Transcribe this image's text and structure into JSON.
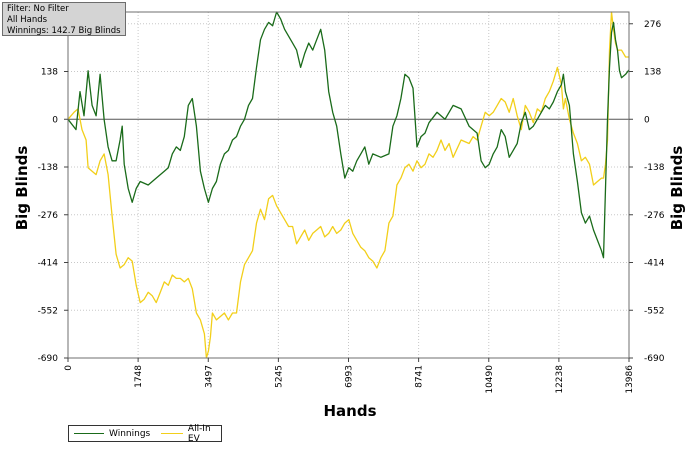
{
  "info": {
    "line1": "Filter: No Filter",
    "line2": "All Hands",
    "line3": "Winnings: 142.7 Big Blinds"
  },
  "chart_data": {
    "type": "line",
    "xlabel": "Hands",
    "ylabel": "Big Blinds",
    "xlim": [
      0,
      13986
    ],
    "ylim": [
      -690,
      310
    ],
    "x_ticks": [
      0,
      1748,
      3497,
      5245,
      6993,
      8741,
      10490,
      12238,
      13986
    ],
    "y_ticks": [
      276,
      138,
      0,
      -138,
      -276,
      -414,
      -552,
      -690
    ],
    "grid": true,
    "legend_position": "bottom-left",
    "series": [
      {
        "name": "Winnings",
        "color": "#1a6b1a",
        "points": [
          [
            0,
            0
          ],
          [
            200,
            -30
          ],
          [
            300,
            80
          ],
          [
            400,
            10
          ],
          [
            500,
            140
          ],
          [
            600,
            40
          ],
          [
            700,
            10
          ],
          [
            800,
            130
          ],
          [
            900,
            0
          ],
          [
            1000,
            -80
          ],
          [
            1100,
            -120
          ],
          [
            1200,
            -120
          ],
          [
            1300,
            -60
          ],
          [
            1350,
            -20
          ],
          [
            1400,
            -130
          ],
          [
            1500,
            -200
          ],
          [
            1600,
            -240
          ],
          [
            1700,
            -200
          ],
          [
            1800,
            -180
          ],
          [
            2000,
            -190
          ],
          [
            2200,
            -170
          ],
          [
            2400,
            -150
          ],
          [
            2500,
            -140
          ],
          [
            2600,
            -100
          ],
          [
            2700,
            -80
          ],
          [
            2800,
            -90
          ],
          [
            2900,
            -50
          ],
          [
            3000,
            40
          ],
          [
            3100,
            60
          ],
          [
            3200,
            -20
          ],
          [
            3300,
            -150
          ],
          [
            3400,
            -200
          ],
          [
            3500,
            -240
          ],
          [
            3600,
            -200
          ],
          [
            3700,
            -180
          ],
          [
            3800,
            -130
          ],
          [
            3900,
            -100
          ],
          [
            4000,
            -90
          ],
          [
            4100,
            -60
          ],
          [
            4200,
            -50
          ],
          [
            4300,
            -20
          ],
          [
            4400,
            0
          ],
          [
            4500,
            40
          ],
          [
            4600,
            60
          ],
          [
            4700,
            150
          ],
          [
            4800,
            230
          ],
          [
            4900,
            260
          ],
          [
            5000,
            280
          ],
          [
            5100,
            270
          ],
          [
            5200,
            310
          ],
          [
            5300,
            290
          ],
          [
            5400,
            260
          ],
          [
            5500,
            240
          ],
          [
            5600,
            220
          ],
          [
            5700,
            200
          ],
          [
            5800,
            150
          ],
          [
            5900,
            190
          ],
          [
            6000,
            220
          ],
          [
            6100,
            200
          ],
          [
            6200,
            230
          ],
          [
            6300,
            260
          ],
          [
            6400,
            200
          ],
          [
            6500,
            80
          ],
          [
            6600,
            20
          ],
          [
            6700,
            -20
          ],
          [
            6800,
            -100
          ],
          [
            6900,
            -170
          ],
          [
            7000,
            -140
          ],
          [
            7100,
            -150
          ],
          [
            7200,
            -120
          ],
          [
            7300,
            -100
          ],
          [
            7400,
            -80
          ],
          [
            7500,
            -130
          ],
          [
            7600,
            -100
          ],
          [
            7800,
            -110
          ],
          [
            8000,
            -100
          ],
          [
            8100,
            -20
          ],
          [
            8200,
            10
          ],
          [
            8300,
            60
          ],
          [
            8400,
            130
          ],
          [
            8500,
            120
          ],
          [
            8600,
            90
          ],
          [
            8700,
            -80
          ],
          [
            8800,
            -50
          ],
          [
            8900,
            -40
          ],
          [
            9000,
            -10
          ],
          [
            9200,
            20
          ],
          [
            9400,
            0
          ],
          [
            9600,
            40
          ],
          [
            9800,
            30
          ],
          [
            10000,
            -20
          ],
          [
            10200,
            -40
          ],
          [
            10300,
            -120
          ],
          [
            10400,
            -140
          ],
          [
            10500,
            -130
          ],
          [
            10600,
            -100
          ],
          [
            10700,
            -80
          ],
          [
            10800,
            -30
          ],
          [
            10900,
            -50
          ],
          [
            11000,
            -110
          ],
          [
            11100,
            -90
          ],
          [
            11200,
            -70
          ],
          [
            11300,
            -10
          ],
          [
            11400,
            20
          ],
          [
            11500,
            -30
          ],
          [
            11600,
            -20
          ],
          [
            11700,
            0
          ],
          [
            11800,
            20
          ],
          [
            11900,
            40
          ],
          [
            12000,
            30
          ],
          [
            12100,
            50
          ],
          [
            12200,
            80
          ],
          [
            12300,
            100
          ],
          [
            12350,
            130
          ],
          [
            12400,
            80
          ],
          [
            12500,
            40
          ],
          [
            12600,
            -100
          ],
          [
            12700,
            -180
          ],
          [
            12800,
            -270
          ],
          [
            12900,
            -300
          ],
          [
            13000,
            -280
          ],
          [
            13100,
            -320
          ],
          [
            13200,
            -350
          ],
          [
            13300,
            -380
          ],
          [
            13350,
            -400
          ],
          [
            13400,
            -200
          ],
          [
            13450,
            0
          ],
          [
            13500,
            150
          ],
          [
            13550,
            250
          ],
          [
            13600,
            280
          ],
          [
            13650,
            230
          ],
          [
            13700,
            200
          ],
          [
            13750,
            140
          ],
          [
            13800,
            120
          ],
          [
            13900,
            130
          ],
          [
            13986,
            142.7
          ]
        ]
      },
      {
        "name": "All-In EV",
        "color": "#f2cf1a",
        "points": [
          [
            0,
            0
          ],
          [
            150,
            20
          ],
          [
            250,
            30
          ],
          [
            350,
            -30
          ],
          [
            450,
            -60
          ],
          [
            500,
            -140
          ],
          [
            600,
            -150
          ],
          [
            700,
            -160
          ],
          [
            800,
            -120
          ],
          [
            900,
            -100
          ],
          [
            1000,
            -160
          ],
          [
            1100,
            -280
          ],
          [
            1200,
            -390
          ],
          [
            1300,
            -430
          ],
          [
            1400,
            -420
          ],
          [
            1500,
            -400
          ],
          [
            1600,
            -410
          ],
          [
            1700,
            -480
          ],
          [
            1800,
            -530
          ],
          [
            1900,
            -520
          ],
          [
            2000,
            -500
          ],
          [
            2100,
            -510
          ],
          [
            2200,
            -530
          ],
          [
            2300,
            -500
          ],
          [
            2400,
            -470
          ],
          [
            2500,
            -480
          ],
          [
            2600,
            -450
          ],
          [
            2700,
            -460
          ],
          [
            2800,
            -460
          ],
          [
            2900,
            -470
          ],
          [
            3000,
            -460
          ],
          [
            3100,
            -490
          ],
          [
            3200,
            -560
          ],
          [
            3300,
            -580
          ],
          [
            3400,
            -620
          ],
          [
            3450,
            -690
          ],
          [
            3500,
            -670
          ],
          [
            3550,
            -630
          ],
          [
            3600,
            -560
          ],
          [
            3700,
            -580
          ],
          [
            3800,
            -570
          ],
          [
            3900,
            -560
          ],
          [
            4000,
            -580
          ],
          [
            4100,
            -560
          ],
          [
            4200,
            -560
          ],
          [
            4300,
            -470
          ],
          [
            4400,
            -420
          ],
          [
            4500,
            -400
          ],
          [
            4600,
            -380
          ],
          [
            4700,
            -300
          ],
          [
            4800,
            -260
          ],
          [
            4900,
            -290
          ],
          [
            5000,
            -230
          ],
          [
            5100,
            -220
          ],
          [
            5200,
            -250
          ],
          [
            5300,
            -270
          ],
          [
            5400,
            -290
          ],
          [
            5500,
            -310
          ],
          [
            5600,
            -310
          ],
          [
            5700,
            -360
          ],
          [
            5800,
            -340
          ],
          [
            5900,
            -320
          ],
          [
            6000,
            -350
          ],
          [
            6100,
            -330
          ],
          [
            6200,
            -320
          ],
          [
            6300,
            -310
          ],
          [
            6400,
            -340
          ],
          [
            6500,
            -330
          ],
          [
            6600,
            -310
          ],
          [
            6700,
            -330
          ],
          [
            6800,
            -320
          ],
          [
            6900,
            -300
          ],
          [
            7000,
            -290
          ],
          [
            7100,
            -330
          ],
          [
            7200,
            -350
          ],
          [
            7300,
            -370
          ],
          [
            7400,
            -380
          ],
          [
            7500,
            -400
          ],
          [
            7600,
            -410
          ],
          [
            7700,
            -430
          ],
          [
            7800,
            -400
          ],
          [
            7900,
            -380
          ],
          [
            8000,
            -300
          ],
          [
            8100,
            -280
          ],
          [
            8200,
            -190
          ],
          [
            8300,
            -170
          ],
          [
            8400,
            -140
          ],
          [
            8500,
            -130
          ],
          [
            8600,
            -150
          ],
          [
            8700,
            -120
          ],
          [
            8800,
            -140
          ],
          [
            8900,
            -130
          ],
          [
            9000,
            -100
          ],
          [
            9100,
            -110
          ],
          [
            9200,
            -90
          ],
          [
            9300,
            -60
          ],
          [
            9400,
            -90
          ],
          [
            9500,
            -70
          ],
          [
            9600,
            -110
          ],
          [
            9800,
            -60
          ],
          [
            10000,
            -70
          ],
          [
            10100,
            -50
          ],
          [
            10200,
            -60
          ],
          [
            10300,
            -20
          ],
          [
            10400,
            20
          ],
          [
            10500,
            10
          ],
          [
            10600,
            20
          ],
          [
            10700,
            40
          ],
          [
            10800,
            60
          ],
          [
            10900,
            50
          ],
          [
            11000,
            20
          ],
          [
            11100,
            60
          ],
          [
            11200,
            10
          ],
          [
            11300,
            -30
          ],
          [
            11400,
            40
          ],
          [
            11500,
            20
          ],
          [
            11600,
            -10
          ],
          [
            11700,
            30
          ],
          [
            11800,
            20
          ],
          [
            11900,
            60
          ],
          [
            12000,
            80
          ],
          [
            12100,
            110
          ],
          [
            12200,
            150
          ],
          [
            12300,
            100
          ],
          [
            12350,
            30
          ],
          [
            12400,
            60
          ],
          [
            12500,
            0
          ],
          [
            12600,
            -40
          ],
          [
            12700,
            -70
          ],
          [
            12800,
            -120
          ],
          [
            12900,
            -110
          ],
          [
            13000,
            -130
          ],
          [
            13100,
            -190
          ],
          [
            13200,
            -180
          ],
          [
            13300,
            -170
          ],
          [
            13350,
            -170
          ],
          [
            13400,
            -130
          ],
          [
            13450,
            -60
          ],
          [
            13500,
            200
          ],
          [
            13550,
            310
          ],
          [
            13600,
            260
          ],
          [
            13650,
            220
          ],
          [
            13700,
            200
          ],
          [
            13800,
            200
          ],
          [
            13900,
            180
          ],
          [
            13986,
            180
          ]
        ]
      }
    ]
  }
}
